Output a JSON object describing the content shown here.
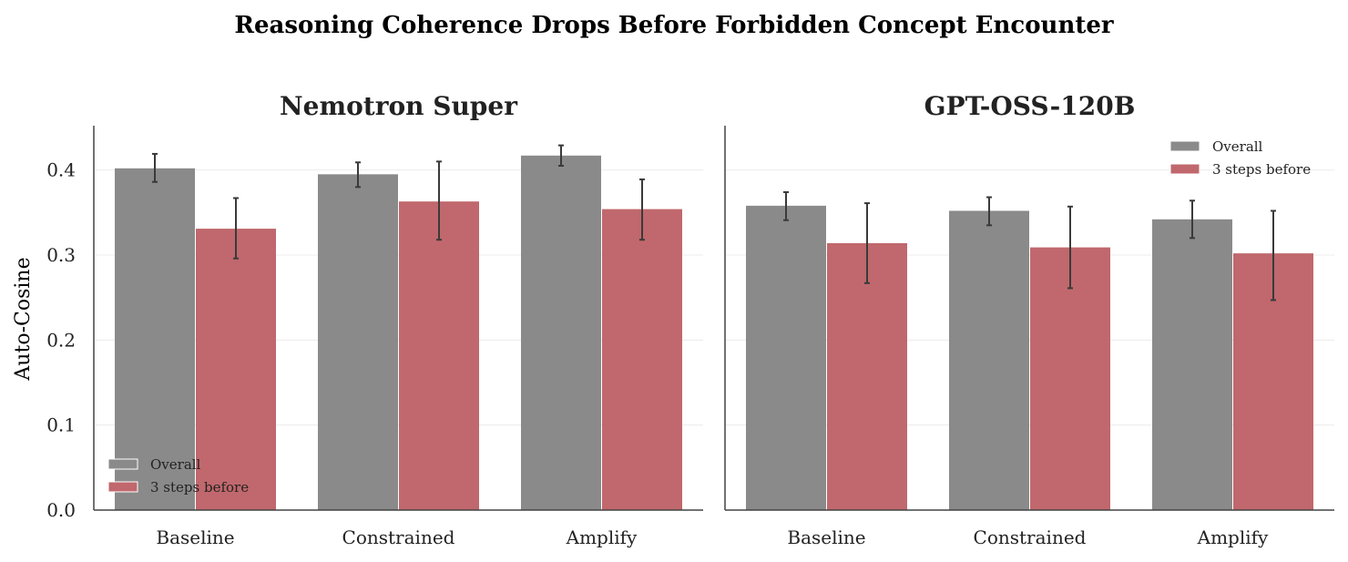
{
  "figure": {
    "suptitle": "Reasoning Coherence Drops Before Forbidden Concept Encounter",
    "ylabel": "Auto-Cosine"
  },
  "colors": {
    "overall": "#8a8a8a",
    "before": "#c0686d",
    "axis": "#444444",
    "grid": "#ececec",
    "text": "#222222",
    "error": "#3a3a3a"
  },
  "chart_data": [
    {
      "type": "bar",
      "title": "Nemotron Super",
      "categories": [
        "Baseline",
        "Constrained",
        "Amplify"
      ],
      "ylim": [
        0,
        0.45
      ],
      "yticks": [
        0.0,
        0.1,
        0.2,
        0.3,
        0.4
      ],
      "ytick_labels": [
        "0.0",
        "0.1",
        "0.2",
        "0.3",
        "0.4"
      ],
      "grid": true,
      "legend_position": "bottom-left",
      "series": [
        {
          "name": "Overall",
          "values": [
            0.402,
            0.395,
            0.417
          ],
          "err_low": [
            0.386,
            0.38,
            0.405
          ],
          "err_high": [
            0.419,
            0.409,
            0.429
          ]
        },
        {
          "name": "3 steps before",
          "values": [
            0.331,
            0.363,
            0.354
          ],
          "err_low": [
            0.296,
            0.318,
            0.318
          ],
          "err_high": [
            0.367,
            0.41,
            0.389
          ]
        }
      ]
    },
    {
      "type": "bar",
      "title": "GPT-OSS-120B",
      "categories": [
        "Baseline",
        "Constrained",
        "Amplify"
      ],
      "ylim": [
        0,
        0.45
      ],
      "yticks": [
        0.0,
        0.1,
        0.2,
        0.3,
        0.4
      ],
      "ytick_labels": [
        "",
        "",
        "",
        "",
        ""
      ],
      "grid": true,
      "legend_position": "top-right",
      "series": [
        {
          "name": "Overall",
          "values": [
            0.358,
            0.352,
            0.342
          ],
          "err_low": [
            0.341,
            0.335,
            0.32
          ],
          "err_high": [
            0.374,
            0.368,
            0.364
          ]
        },
        {
          "name": "3 steps before",
          "values": [
            0.314,
            0.309,
            0.302
          ],
          "err_low": [
            0.267,
            0.261,
            0.247
          ],
          "err_high": [
            0.361,
            0.357,
            0.352
          ]
        }
      ]
    }
  ]
}
